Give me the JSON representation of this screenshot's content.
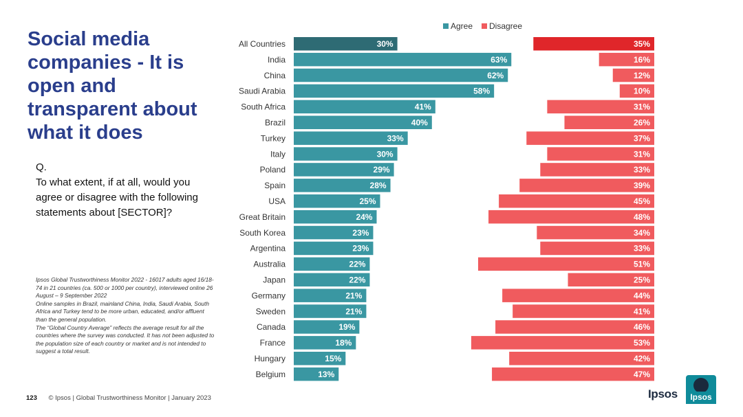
{
  "title": "Social media companies - It is open and transparent about what it does",
  "question": {
    "label": "Q.",
    "text": "To what extent, if at all, would you agree or disagree with the following statements about [SECTOR]?"
  },
  "source_notes": [
    "Ipsos Global Trustworthiness Monitor 2022 - 16017 adults aged 16/18-74 in 21 countries (ca. 500 or 1000 per country), interviewed online 26 August – 9 September 2022",
    "Online samples in Brazil, mainland China, India, Saudi Arabia, South Africa and Turkey tend to be more urban, educated, and/or affluent than the general population.",
    "The “Global Country Average” reflects the average result for all the countries where the survey was conducted. It has not been adjusted to the population size of each country or market and is not intended to suggest a total result."
  ],
  "footer": {
    "page_number": "123",
    "text": "© Ipsos | Global Trustworthiness Monitor | January 2023"
  },
  "logo": {
    "wordmark": "Ipsos",
    "badge_text": "Ipsos"
  },
  "colors": {
    "agree": "#3a97a2",
    "agree_highlight": "#2e6b74",
    "disagree": "#f05b5e",
    "disagree_highlight": "#e0262a",
    "title": "#2a3e8c"
  },
  "chart_data": {
    "type": "bar",
    "orientation": "horizontal-diverging",
    "legend": [
      "Agree",
      "Disagree"
    ],
    "legend_position": "top-right",
    "value_suffix": "%",
    "xlim": [
      0,
      100
    ],
    "categories": [
      "All Countries",
      "India",
      "China",
      "Saudi Arabia",
      "South Africa",
      "Brazil",
      "Turkey",
      "Italy",
      "Poland",
      "Spain",
      "USA",
      "Great Britain",
      "South Korea",
      "Argentina",
      "Australia",
      "Japan",
      "Germany",
      "Sweden",
      "Canada",
      "France",
      "Hungary",
      "Belgium"
    ],
    "series": [
      {
        "name": "Agree",
        "values": [
          30,
          63,
          62,
          58,
          41,
          40,
          33,
          30,
          29,
          28,
          25,
          24,
          23,
          23,
          22,
          22,
          21,
          21,
          19,
          18,
          15,
          13
        ]
      },
      {
        "name": "Disagree",
        "values": [
          35,
          16,
          12,
          10,
          31,
          26,
          37,
          31,
          33,
          39,
          45,
          48,
          34,
          33,
          51,
          25,
          44,
          41,
          46,
          53,
          42,
          47
        ]
      }
    ]
  }
}
